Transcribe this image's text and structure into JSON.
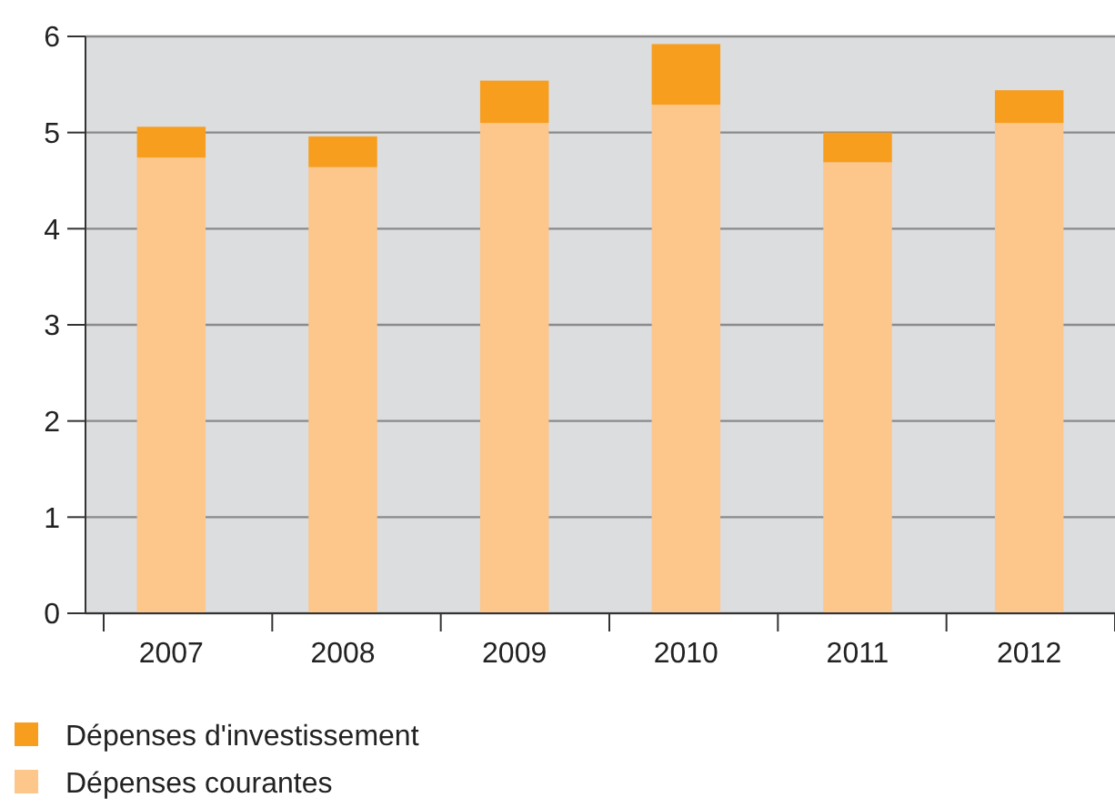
{
  "chart_data": {
    "type": "bar",
    "stacked": true,
    "categories": [
      "2007",
      "2008",
      "2009",
      "2010",
      "2011",
      "2012"
    ],
    "series": [
      {
        "name": "Dépenses courantes",
        "color": "#fdc68a",
        "values": [
          4.74,
          4.64,
          5.1,
          5.29,
          4.69,
          5.1
        ]
      },
      {
        "name": "Dépenses d'investissement",
        "color": "#f79e1f",
        "values": [
          0.32,
          0.32,
          0.44,
          0.63,
          0.31,
          0.34
        ]
      }
    ],
    "ylim": [
      0,
      6
    ],
    "yticks": [
      0,
      1,
      2,
      3,
      4,
      5,
      6
    ],
    "grid": "y",
    "legend": "bottom"
  }
}
